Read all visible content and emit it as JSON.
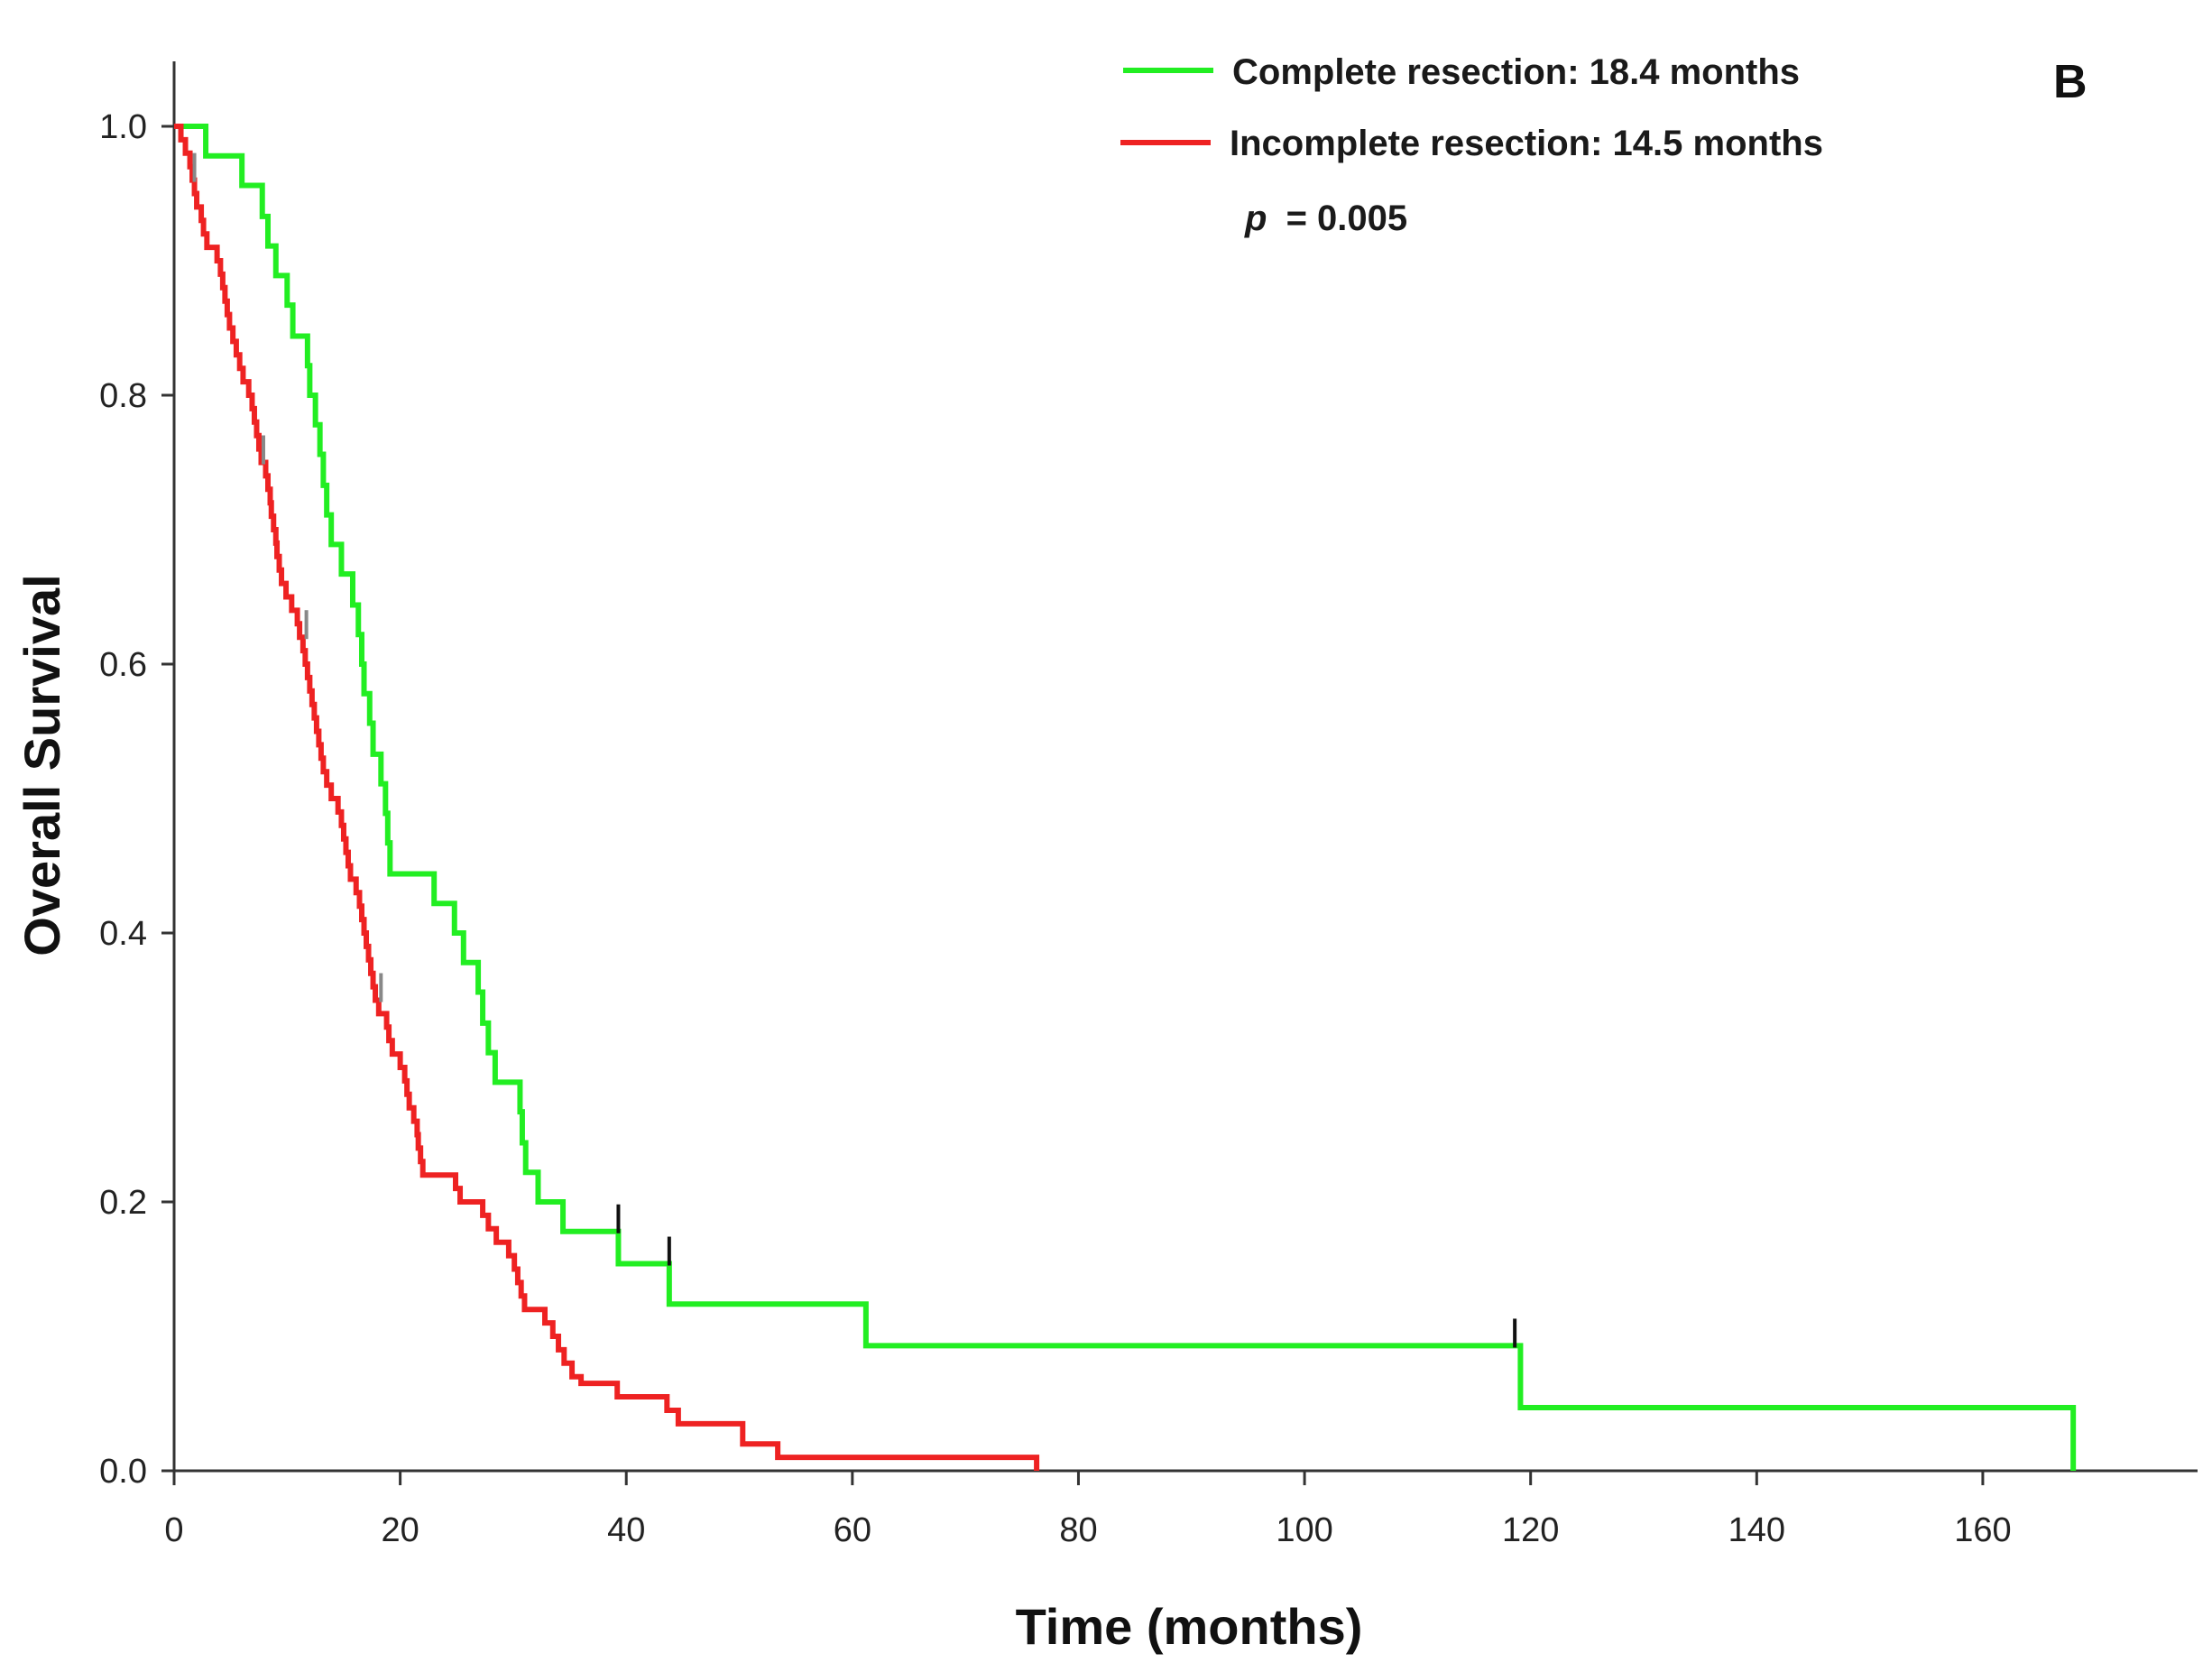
{
  "chart_data": {
    "type": "line",
    "subtype": "kaplan-meier-step",
    "panel_label": "B",
    "xlabel": "Time (months)",
    "ylabel": "Overall Survival",
    "xlim": [
      0,
      179
    ],
    "ylim": [
      0,
      1.0
    ],
    "xticks": [
      0,
      20,
      40,
      60,
      80,
      100,
      120,
      140,
      160
    ],
    "yticks": [
      0.0,
      0.2,
      0.4,
      0.6,
      0.8,
      1.0
    ],
    "ytick_labels": [
      "0.0",
      "0.2",
      "0.4",
      "0.6",
      "0.8",
      "1.0"
    ],
    "grid": false,
    "legend_position": "top-right",
    "annotation": {
      "p_label": "p",
      "p_value": "= 0.005"
    },
    "series": [
      {
        "name": "Complete resection: 18.4 months",
        "color": "#22ee22",
        "steps": [
          [
            0,
            1.0
          ],
          [
            2.8,
            0.978
          ],
          [
            6,
            0.956
          ],
          [
            7.8,
            0.933
          ],
          [
            8.3,
            0.911
          ],
          [
            9,
            0.889
          ],
          [
            10,
            0.867
          ],
          [
            10.5,
            0.844
          ],
          [
            11.8,
            0.822
          ],
          [
            12,
            0.8
          ],
          [
            12.5,
            0.778
          ],
          [
            12.9,
            0.756
          ],
          [
            13.2,
            0.733
          ],
          [
            13.5,
            0.711
          ],
          [
            13.9,
            0.689
          ],
          [
            14.8,
            0.667
          ],
          [
            15.8,
            0.644
          ],
          [
            16.3,
            0.622
          ],
          [
            16.6,
            0.6
          ],
          [
            16.8,
            0.578
          ],
          [
            17.3,
            0.556
          ],
          [
            17.6,
            0.533
          ],
          [
            18.3,
            0.511
          ],
          [
            18.7,
            0.489
          ],
          [
            18.9,
            0.467
          ],
          [
            19.1,
            0.444
          ],
          [
            23,
            0.422
          ],
          [
            24.8,
            0.4
          ],
          [
            25.6,
            0.378
          ],
          [
            26.9,
            0.356
          ],
          [
            27.3,
            0.333
          ],
          [
            27.8,
            0.311
          ],
          [
            28.4,
            0.289
          ],
          [
            30.6,
            0.267
          ],
          [
            30.8,
            0.244
          ],
          [
            31.1,
            0.222
          ],
          [
            32.2,
            0.2
          ],
          [
            34.4,
            0.178
          ],
          [
            39.3,
            0.154
          ],
          [
            43.8,
            0.124
          ],
          [
            61.2,
            0.093
          ],
          [
            119.1,
            0.047
          ],
          [
            168,
            0.0
          ]
        ],
        "end_x": 168,
        "censored": [
          {
            "x": 39.3,
            "y": 0.178
          },
          {
            "x": 43.8,
            "y": 0.154
          },
          {
            "x": 118.6,
            "y": 0.093
          }
        ]
      },
      {
        "name": "Incomplete resection: 14.5 months",
        "color": "#ee2222",
        "steps": [
          [
            0,
            1.0
          ],
          [
            0.6,
            0.99
          ],
          [
            1.0,
            0.98
          ],
          [
            1.4,
            0.97
          ],
          [
            1.6,
            0.96
          ],
          [
            1.8,
            0.95
          ],
          [
            2.0,
            0.94
          ],
          [
            2.4,
            0.93
          ],
          [
            2.6,
            0.92
          ],
          [
            2.9,
            0.91
          ],
          [
            3.8,
            0.9
          ],
          [
            4.1,
            0.89
          ],
          [
            4.3,
            0.88
          ],
          [
            4.5,
            0.87
          ],
          [
            4.7,
            0.86
          ],
          [
            4.9,
            0.85
          ],
          [
            5.2,
            0.84
          ],
          [
            5.5,
            0.83
          ],
          [
            5.8,
            0.82
          ],
          [
            6.1,
            0.81
          ],
          [
            6.6,
            0.8
          ],
          [
            6.9,
            0.79
          ],
          [
            7.1,
            0.78
          ],
          [
            7.3,
            0.77
          ],
          [
            7.5,
            0.76
          ],
          [
            7.7,
            0.75
          ],
          [
            8.1,
            0.74
          ],
          [
            8.3,
            0.73
          ],
          [
            8.5,
            0.72
          ],
          [
            8.6,
            0.71
          ],
          [
            8.8,
            0.7
          ],
          [
            9.0,
            0.69
          ],
          [
            9.1,
            0.68
          ],
          [
            9.3,
            0.67
          ],
          [
            9.5,
            0.66
          ],
          [
            9.9,
            0.65
          ],
          [
            10.4,
            0.64
          ],
          [
            10.9,
            0.63
          ],
          [
            11.1,
            0.62
          ],
          [
            11.4,
            0.61
          ],
          [
            11.6,
            0.6
          ],
          [
            11.8,
            0.59
          ],
          [
            12.0,
            0.58
          ],
          [
            12.2,
            0.57
          ],
          [
            12.4,
            0.56
          ],
          [
            12.6,
            0.55
          ],
          [
            12.8,
            0.54
          ],
          [
            13.0,
            0.53
          ],
          [
            13.2,
            0.52
          ],
          [
            13.5,
            0.51
          ],
          [
            13.9,
            0.5
          ],
          [
            14.5,
            0.49
          ],
          [
            14.8,
            0.48
          ],
          [
            15.0,
            0.47
          ],
          [
            15.2,
            0.46
          ],
          [
            15.4,
            0.45
          ],
          [
            15.6,
            0.44
          ],
          [
            16.1,
            0.43
          ],
          [
            16.4,
            0.42
          ],
          [
            16.6,
            0.41
          ],
          [
            16.8,
            0.4
          ],
          [
            17.0,
            0.39
          ],
          [
            17.2,
            0.38
          ],
          [
            17.4,
            0.37
          ],
          [
            17.6,
            0.36
          ],
          [
            17.8,
            0.35
          ],
          [
            18.1,
            0.34
          ],
          [
            18.8,
            0.33
          ],
          [
            19.0,
            0.32
          ],
          [
            19.3,
            0.31
          ],
          [
            20.0,
            0.3
          ],
          [
            20.4,
            0.29
          ],
          [
            20.6,
            0.28
          ],
          [
            20.8,
            0.27
          ],
          [
            21.2,
            0.26
          ],
          [
            21.5,
            0.25
          ],
          [
            21.6,
            0.24
          ],
          [
            21.8,
            0.23
          ],
          [
            22.0,
            0.22
          ],
          [
            24.9,
            0.21
          ],
          [
            25.3,
            0.2
          ],
          [
            27.3,
            0.19
          ],
          [
            27.8,
            0.18
          ],
          [
            28.5,
            0.17
          ],
          [
            29.6,
            0.16
          ],
          [
            30.1,
            0.15
          ],
          [
            30.4,
            0.14
          ],
          [
            30.7,
            0.13
          ],
          [
            31.0,
            0.12
          ],
          [
            32.8,
            0.11
          ],
          [
            33.5,
            0.1
          ],
          [
            34.0,
            0.09
          ],
          [
            34.5,
            0.08
          ],
          [
            35.2,
            0.07
          ],
          [
            36.0,
            0.065
          ],
          [
            39.2,
            0.055
          ],
          [
            43.6,
            0.045
          ],
          [
            44.6,
            0.035
          ],
          [
            50.3,
            0.02
          ],
          [
            53.4,
            0.01
          ],
          [
            76.3,
            0.0
          ]
        ],
        "end_x": 76.3,
        "censored": [
          {
            "x": 1.8,
            "y": 0.96
          },
          {
            "x": 7.9,
            "y": 0.75
          },
          {
            "x": 11.7,
            "y": 0.62
          },
          {
            "x": 18.3,
            "y": 0.35
          }
        ]
      }
    ]
  }
}
